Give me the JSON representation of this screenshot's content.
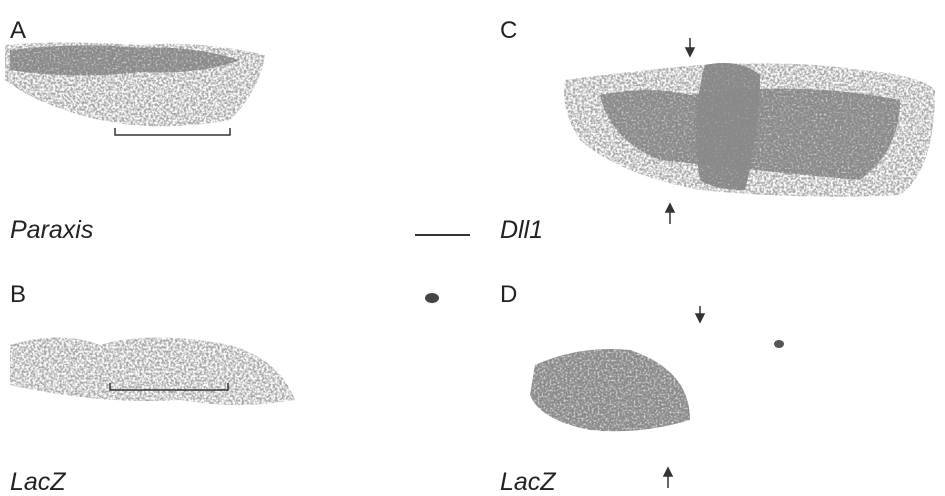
{
  "panels": [
    {
      "letter": "A",
      "label": "Paraxis"
    },
    {
      "letter": "B",
      "label": "LacZ"
    },
    {
      "letter": "C",
      "label": "Dll1"
    },
    {
      "letter": "D",
      "label": "LacZ"
    }
  ]
}
